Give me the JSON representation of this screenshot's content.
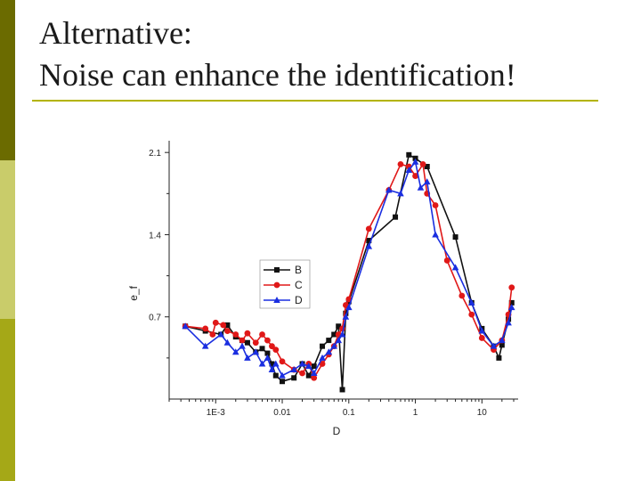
{
  "slide": {
    "title_line1": "Alternative:",
    "title_line2": "Noise can enhance the identification!"
  },
  "colors": {
    "bar_dark": "#6b6b00",
    "bar_mid": "#c9cc6a",
    "bar_light": "#a5a817",
    "rule": "#b3b300"
  },
  "chart_data": {
    "type": "line",
    "xlabel": "D",
    "ylabel": "e_f",
    "xscale": "log",
    "xlim": [
      0.0002,
      35
    ],
    "ylim": [
      0.0,
      2.2
    ],
    "x_ticks": [
      0.001,
      0.01,
      0.1,
      1,
      10
    ],
    "x_tick_labels": [
      "1E-3",
      "0.01",
      "0.1",
      "1",
      "10"
    ],
    "y_ticks": [
      0.7,
      1.4,
      2.1
    ],
    "y_tick_labels": [
      "0.7",
      "1.4",
      "2.1"
    ],
    "legend_position": "center-left",
    "series": [
      {
        "name": "B",
        "color": "#111111",
        "marker": "square",
        "points": [
          [
            0.00035,
            0.62
          ],
          [
            0.0007,
            0.58
          ],
          [
            0.0012,
            0.55
          ],
          [
            0.0015,
            0.63
          ],
          [
            0.002,
            0.53
          ],
          [
            0.0025,
            0.5
          ],
          [
            0.003,
            0.48
          ],
          [
            0.004,
            0.4
          ],
          [
            0.005,
            0.43
          ],
          [
            0.006,
            0.39
          ],
          [
            0.007,
            0.3
          ],
          [
            0.008,
            0.2
          ],
          [
            0.01,
            0.15
          ],
          [
            0.015,
            0.18
          ],
          [
            0.02,
            0.3
          ],
          [
            0.025,
            0.2
          ],
          [
            0.03,
            0.28
          ],
          [
            0.04,
            0.45
          ],
          [
            0.05,
            0.5
          ],
          [
            0.06,
            0.55
          ],
          [
            0.07,
            0.62
          ],
          [
            0.08,
            0.08
          ],
          [
            0.09,
            0.73
          ],
          [
            0.1,
            0.83
          ],
          [
            0.2,
            1.35
          ],
          [
            0.5,
            1.55
          ],
          [
            0.8,
            2.08
          ],
          [
            1.0,
            2.05
          ],
          [
            1.5,
            1.98
          ],
          [
            4.0,
            1.38
          ],
          [
            7.0,
            0.82
          ],
          [
            10.0,
            0.6
          ],
          [
            15.0,
            0.45
          ],
          [
            18.0,
            0.35
          ],
          [
            20.0,
            0.46
          ],
          [
            25.0,
            0.68
          ],
          [
            28.0,
            0.82
          ]
        ]
      },
      {
        "name": "C",
        "color": "#e01818",
        "marker": "circle",
        "points": [
          [
            0.00035,
            0.62
          ],
          [
            0.0007,
            0.6
          ],
          [
            0.0009,
            0.55
          ],
          [
            0.001,
            0.65
          ],
          [
            0.0013,
            0.63
          ],
          [
            0.0015,
            0.58
          ],
          [
            0.002,
            0.55
          ],
          [
            0.0025,
            0.5
          ],
          [
            0.003,
            0.56
          ],
          [
            0.004,
            0.48
          ],
          [
            0.005,
            0.55
          ],
          [
            0.006,
            0.5
          ],
          [
            0.007,
            0.45
          ],
          [
            0.008,
            0.42
          ],
          [
            0.01,
            0.32
          ],
          [
            0.015,
            0.25
          ],
          [
            0.02,
            0.22
          ],
          [
            0.025,
            0.3
          ],
          [
            0.03,
            0.18
          ],
          [
            0.04,
            0.3
          ],
          [
            0.05,
            0.38
          ],
          [
            0.06,
            0.45
          ],
          [
            0.07,
            0.55
          ],
          [
            0.08,
            0.6
          ],
          [
            0.09,
            0.8
          ],
          [
            0.1,
            0.85
          ],
          [
            0.2,
            1.45
          ],
          [
            0.4,
            1.78
          ],
          [
            0.6,
            2.0
          ],
          [
            0.8,
            1.98
          ],
          [
            1.0,
            1.9
          ],
          [
            1.3,
            2.0
          ],
          [
            1.5,
            1.75
          ],
          [
            2.0,
            1.65
          ],
          [
            3.0,
            1.18
          ],
          [
            5.0,
            0.88
          ],
          [
            7.0,
            0.72
          ],
          [
            10.0,
            0.52
          ],
          [
            15.0,
            0.42
          ],
          [
            20.0,
            0.5
          ],
          [
            25.0,
            0.72
          ],
          [
            28.0,
            0.95
          ]
        ]
      },
      {
        "name": "D",
        "color": "#1a2ee0",
        "marker": "triangle",
        "points": [
          [
            0.00035,
            0.62
          ],
          [
            0.0007,
            0.45
          ],
          [
            0.0012,
            0.55
          ],
          [
            0.0015,
            0.48
          ],
          [
            0.002,
            0.4
          ],
          [
            0.0025,
            0.45
          ],
          [
            0.003,
            0.35
          ],
          [
            0.004,
            0.4
          ],
          [
            0.005,
            0.3
          ],
          [
            0.006,
            0.35
          ],
          [
            0.007,
            0.25
          ],
          [
            0.008,
            0.3
          ],
          [
            0.01,
            0.2
          ],
          [
            0.015,
            0.25
          ],
          [
            0.02,
            0.3
          ],
          [
            0.025,
            0.28
          ],
          [
            0.03,
            0.22
          ],
          [
            0.04,
            0.35
          ],
          [
            0.05,
            0.4
          ],
          [
            0.06,
            0.45
          ],
          [
            0.07,
            0.5
          ],
          [
            0.08,
            0.55
          ],
          [
            0.09,
            0.7
          ],
          [
            0.1,
            0.78
          ],
          [
            0.2,
            1.3
          ],
          [
            0.4,
            1.78
          ],
          [
            0.6,
            1.75
          ],
          [
            0.8,
            1.95
          ],
          [
            1.0,
            2.02
          ],
          [
            1.2,
            1.8
          ],
          [
            1.5,
            1.85
          ],
          [
            2.0,
            1.4
          ],
          [
            4.0,
            1.12
          ],
          [
            7.0,
            0.82
          ],
          [
            10.0,
            0.58
          ],
          [
            15.0,
            0.45
          ],
          [
            20.0,
            0.5
          ],
          [
            25.0,
            0.65
          ],
          [
            28.0,
            0.78
          ]
        ]
      }
    ]
  }
}
